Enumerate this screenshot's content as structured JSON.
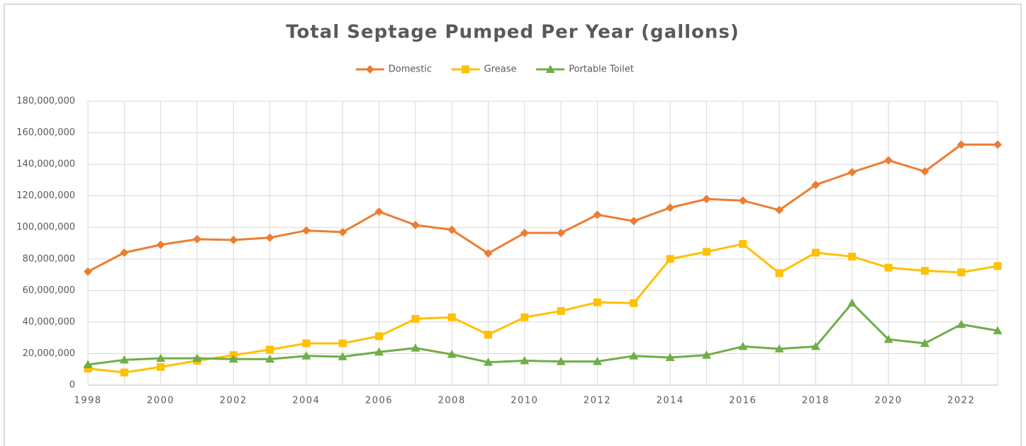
{
  "chart_data": {
    "type": "line",
    "title": "Total Septage Pumped Per Year (gallons)",
    "x": [
      1998,
      1999,
      2000,
      2001,
      2002,
      2003,
      2004,
      2005,
      2006,
      2007,
      2008,
      2009,
      2010,
      2011,
      2012,
      2013,
      2014,
      2015,
      2016,
      2017,
      2018,
      2019,
      2020,
      2021,
      2022,
      2023
    ],
    "series": [
      {
        "name": "Domestic",
        "color": "#ed7d31",
        "marker": "diamond",
        "values": [
          72000000,
          84000000,
          89000000,
          92500000,
          92000000,
          93500000,
          98000000,
          97000000,
          110000000,
          101500000,
          98500000,
          83500000,
          96500000,
          96500000,
          108000000,
          104000000,
          112500000,
          118000000,
          117000000,
          111000000,
          127000000,
          135000000,
          142500000,
          135500000,
          152500000,
          152500000
        ]
      },
      {
        "name": "Grease",
        "color": "#ffc000",
        "marker": "square",
        "values": [
          10500000,
          8000000,
          11500000,
          15500000,
          19000000,
          22500000,
          26500000,
          26500000,
          31000000,
          42000000,
          43000000,
          32000000,
          43000000,
          47000000,
          52500000,
          52000000,
          80000000,
          84500000,
          89500000,
          71000000,
          84000000,
          81500000,
          74500000,
          72500000,
          71500000,
          75500000
        ]
      },
      {
        "name": "Portable Toilet",
        "color": "#70ad47",
        "marker": "triangle",
        "values": [
          13000000,
          16000000,
          17000000,
          17000000,
          16500000,
          16500000,
          18500000,
          18000000,
          21000000,
          23500000,
          19500000,
          14500000,
          15500000,
          15000000,
          15000000,
          18500000,
          17500000,
          19000000,
          24500000,
          23000000,
          24500000,
          52000000,
          29000000,
          26500000,
          38500000,
          34500000
        ]
      }
    ],
    "xlim": [
      1998,
      2023
    ],
    "xticks": [
      1998,
      2000,
      2002,
      2004,
      2006,
      2008,
      2010,
      2012,
      2014,
      2016,
      2018,
      2020,
      2022
    ],
    "ylim": [
      0,
      180000000
    ],
    "yticks": [
      0,
      {
        "value": 20000000,
        "label": "20,000,000"
      },
      {
        "value": 40000000,
        "label": "40,000,000"
      },
      {
        "value": 60000000,
        "label": "60,000,000"
      },
      {
        "value": 80000000,
        "label": "80,000,000"
      },
      {
        "value": 100000000,
        "label": "100,000,000"
      },
      {
        "value": 120000000,
        "label": "120,000,000"
      },
      {
        "value": 140000000,
        "label": "140,000,000"
      },
      {
        "value": 160000000,
        "label": "160,000,000"
      },
      {
        "value": 180000000,
        "label": "180,000,000"
      }
    ],
    "grid": true,
    "legend": "top"
  }
}
